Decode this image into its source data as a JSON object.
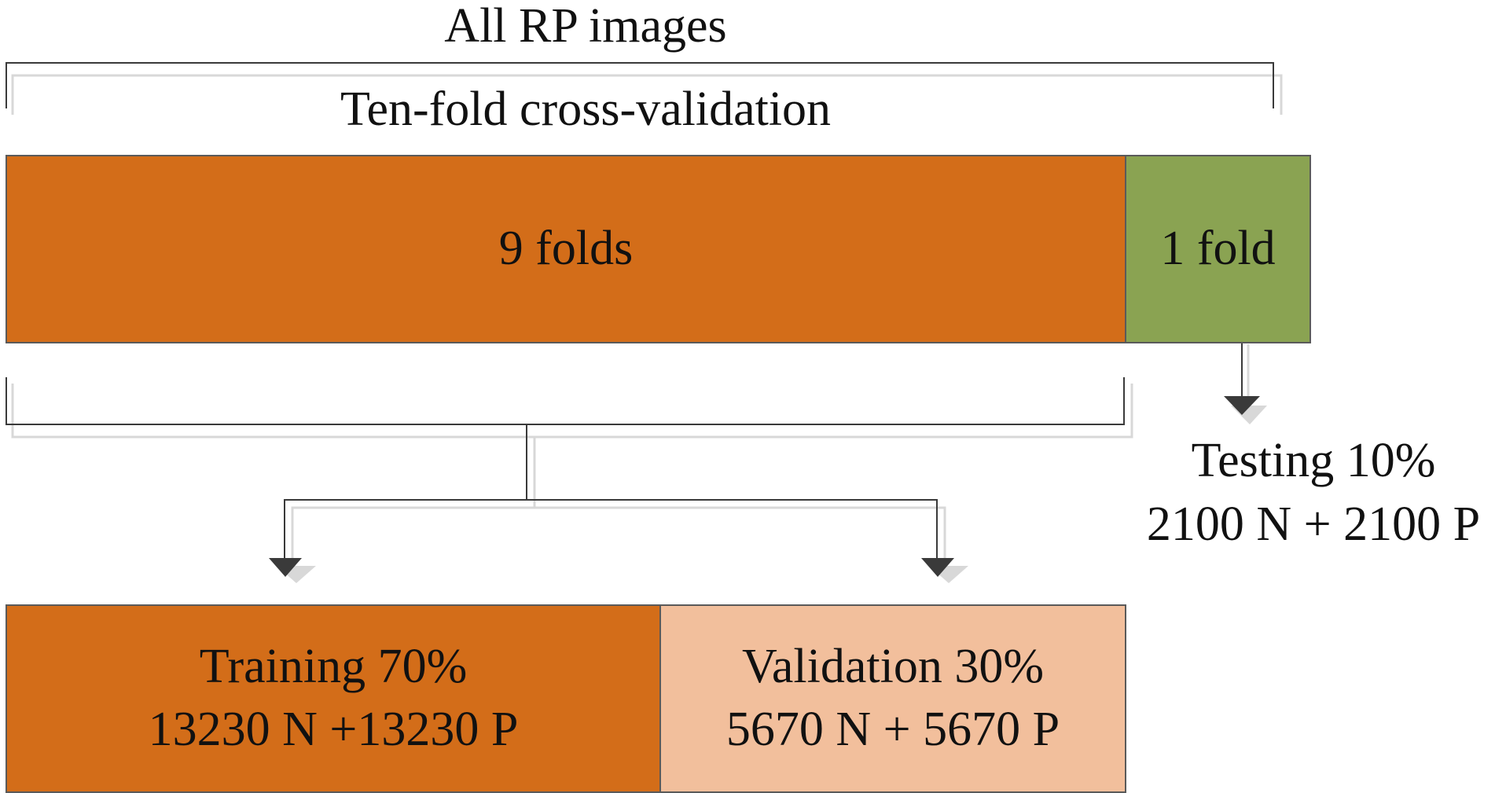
{
  "header": {
    "all_images_label": "All RP images",
    "cross_validation_label": "Ten-fold cross-validation"
  },
  "folds": {
    "nine_folds_label": "9 folds",
    "one_fold_label": "1 fold"
  },
  "testing": {
    "title": "Testing 10%",
    "counts": "2100 N + 2100 P"
  },
  "training": {
    "title": "Training 70%",
    "counts": "13230 N +13230  P"
  },
  "validation": {
    "title": "Validation 30%",
    "counts": "5670 N + 5670  P"
  },
  "colors": {
    "nine_folds_fill": "#d36d19",
    "one_fold_fill": "#8aa352",
    "training_fill": "#d36d19",
    "validation_fill": "#f2bf9c",
    "connector": "#3a3a3a",
    "connector_shadow": "#d8d8d8"
  }
}
